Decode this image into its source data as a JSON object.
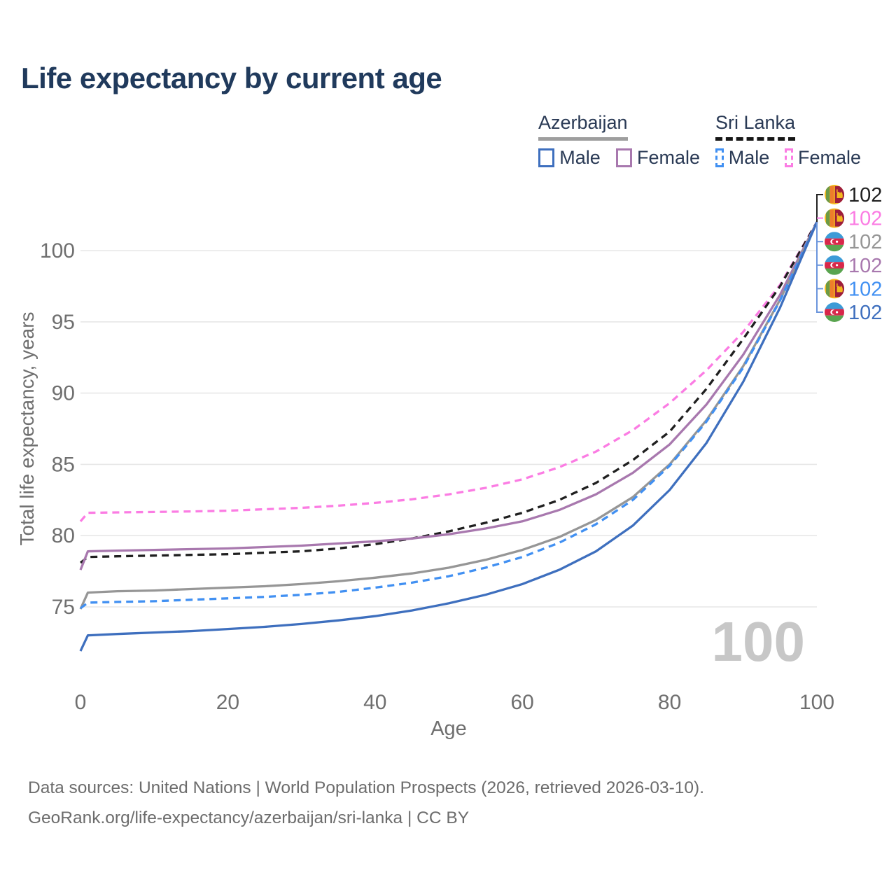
{
  "page": {
    "title": "Life expectancy by current age"
  },
  "legend": {
    "azerbaijan": {
      "label": "Azerbaijan",
      "male_label": "Male",
      "female_label": "Female"
    },
    "sri_lanka": {
      "label": "Sri Lanka",
      "male_label": "Male",
      "female_label": "Female"
    }
  },
  "footer": {
    "line1": "Data sources: United Nations | World Population Prospects (2026, retrieved 2026-03-10).",
    "line2": "GeoRank.org/life-expectancy/azerbaijan/sri-lanka | CC BY"
  },
  "colors": {
    "title": "#203a5c",
    "legend_text": "#2a3a55",
    "axis_text": "#6f6f6f",
    "grid": "#e7e7e7",
    "watermark": "#c7c7c7",
    "footer": "#6c6c6c",
    "az_underline": "#9e9e9e",
    "sl_underline": "#161616",
    "leader_blue": "#6b95dc",
    "leader_black": "#222222",
    "az_male": "#3e6fbe",
    "az_female": "#a878ae",
    "az_total": "#969696",
    "sl_male": "#4190f2",
    "sl_female": "#fb7ce3",
    "sl_total": "#1f1f1f"
  },
  "chart_data": {
    "type": "line",
    "title": "Life expectancy by current age",
    "xlabel": "Age",
    "ylabel": "Total life expectancy, years",
    "xlim": [
      0,
      100
    ],
    "ylim": [
      71,
      103
    ],
    "x_ticks": [
      0,
      20,
      40,
      60,
      80,
      100
    ],
    "y_ticks": [
      75,
      80,
      85,
      90,
      95,
      100
    ],
    "grid": "horizontal",
    "legend_position": "top-right",
    "watermark": "100",
    "x": [
      0,
      1,
      5,
      10,
      15,
      20,
      25,
      30,
      35,
      40,
      45,
      50,
      55,
      60,
      65,
      70,
      75,
      80,
      85,
      90,
      95,
      100
    ],
    "series": [
      {
        "id": "az-male",
        "name": "Azerbaijan Male",
        "country": "Azerbaijan",
        "sex": "Male",
        "flag": "az",
        "color": "#3e6fbe",
        "dash": false,
        "values": [
          71.9,
          73.0,
          73.1,
          73.2,
          73.3,
          73.45,
          73.6,
          73.8,
          74.05,
          74.35,
          74.75,
          75.25,
          75.85,
          76.6,
          77.6,
          78.9,
          80.7,
          83.2,
          86.5,
          90.8,
          96.0,
          102
        ]
      },
      {
        "id": "az-female",
        "name": "Azerbaijan Female",
        "country": "Azerbaijan",
        "sex": "Female",
        "flag": "az",
        "color": "#a878ae",
        "dash": false,
        "values": [
          77.6,
          78.9,
          78.95,
          79.0,
          79.05,
          79.1,
          79.2,
          79.3,
          79.45,
          79.6,
          79.8,
          80.1,
          80.5,
          81.0,
          81.8,
          82.9,
          84.4,
          86.4,
          89.2,
          92.7,
          96.9,
          102
        ]
      },
      {
        "id": "az-total",
        "name": "Azerbaijan Total",
        "country": "Azerbaijan",
        "sex": "Total",
        "flag": "az",
        "color": "#969696",
        "dash": false,
        "values": [
          74.85,
          76.0,
          76.1,
          76.15,
          76.25,
          76.35,
          76.45,
          76.6,
          76.8,
          77.05,
          77.35,
          77.75,
          78.3,
          79.0,
          79.9,
          81.1,
          82.7,
          85.0,
          88.1,
          91.9,
          96.55,
          102
        ]
      },
      {
        "id": "sl-male",
        "name": "Sri Lanka Male",
        "country": "Sri Lanka",
        "sex": "Male",
        "flag": "lk",
        "color": "#4190f2",
        "dash": true,
        "values": [
          74.9,
          75.3,
          75.35,
          75.4,
          75.5,
          75.6,
          75.7,
          75.85,
          76.05,
          76.35,
          76.7,
          77.15,
          77.75,
          78.5,
          79.5,
          80.8,
          82.5,
          84.9,
          88.0,
          91.8,
          96.5,
          102
        ]
      },
      {
        "id": "sl-female",
        "name": "Sri Lanka Female",
        "country": "Sri Lanka",
        "sex": "Female",
        "flag": "lk",
        "color": "#fb7ce3",
        "dash": true,
        "values": [
          81.0,
          81.6,
          81.63,
          81.66,
          81.7,
          81.75,
          81.85,
          81.95,
          82.1,
          82.3,
          82.55,
          82.9,
          83.35,
          83.95,
          84.8,
          85.9,
          87.4,
          89.3,
          91.6,
          94.3,
          97.6,
          102
        ]
      },
      {
        "id": "sl-total",
        "name": "Sri Lanka Total",
        "country": "Sri Lanka",
        "sex": "Total",
        "flag": "lk",
        "color": "#1f1f1f",
        "dash": true,
        "values": [
          78.1,
          78.5,
          78.55,
          78.6,
          78.65,
          78.7,
          78.8,
          78.9,
          79.1,
          79.4,
          79.8,
          80.3,
          80.9,
          81.6,
          82.5,
          83.7,
          85.3,
          87.3,
          90.3,
          93.8,
          97.5,
          102
        ]
      }
    ],
    "draw_order": [
      "sl-female",
      "sl-total",
      "az-female",
      "az-total",
      "sl-male",
      "az-male"
    ],
    "end_labels": [
      {
        "series": "sl-total",
        "flag": "lk",
        "value": "102"
      },
      {
        "series": "sl-female",
        "flag": "lk",
        "value": "102"
      },
      {
        "series": "az-total",
        "flag": "az",
        "value": "102"
      },
      {
        "series": "az-female",
        "flag": "az",
        "value": "102"
      },
      {
        "series": "sl-male",
        "flag": "lk",
        "value": "102"
      },
      {
        "series": "az-male",
        "flag": "az",
        "value": "102"
      }
    ]
  }
}
